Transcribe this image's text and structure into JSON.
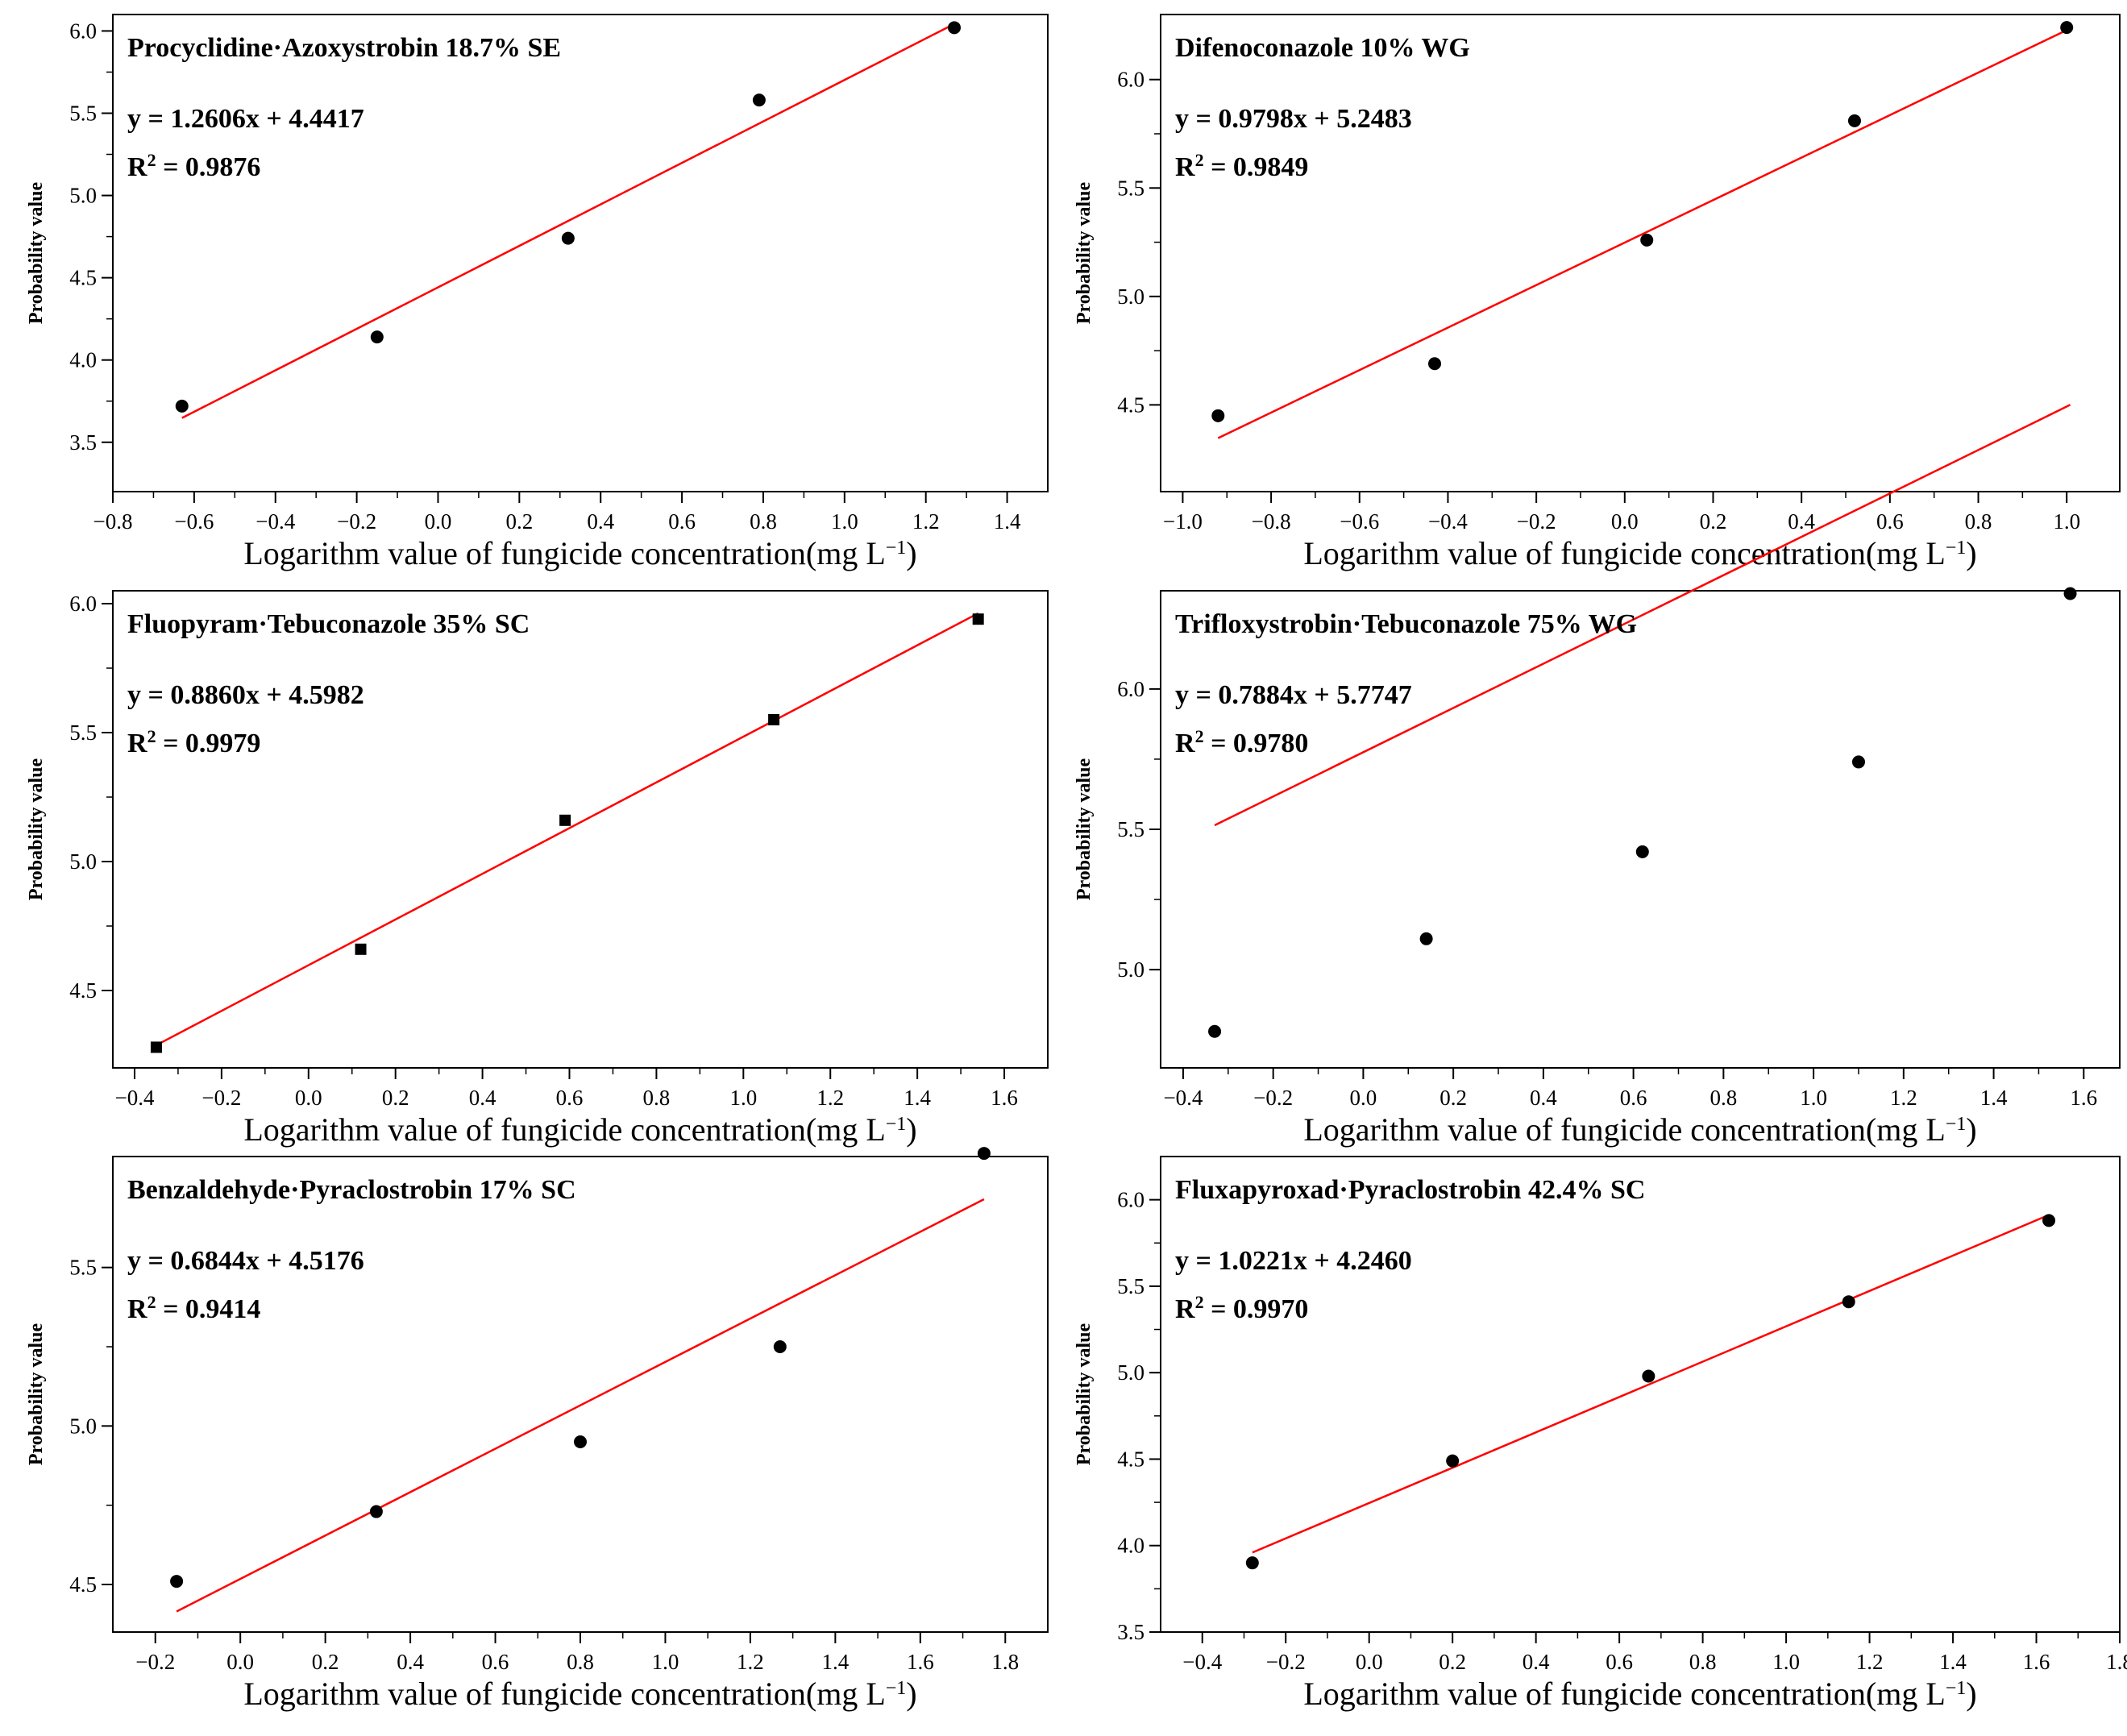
{
  "colors": {
    "fit_line": "#ff0000",
    "points": "#000000",
    "frame": "#000000"
  },
  "chart_data": [
    {
      "type": "scatter",
      "title": "Procyclidine·Azoxystrobin 18.7% SE",
      "equation": "y = 1.2606x + 4.4417",
      "r2_prefix": "R",
      "r2_sup": "2",
      "r2_value": " = 0.9876",
      "xlabel": "Logarithm value of fungicide concentration(mg L",
      "xlabel_sup": "−1",
      "xlabel_end": ")",
      "ylabel": "Probability value",
      "xlim": [
        -0.8,
        1.5
      ],
      "ylim": [
        3.2,
        6.1
      ],
      "xticks": [
        -0.8,
        -0.6,
        -0.4,
        -0.2,
        0.0,
        0.2,
        0.4,
        0.6,
        0.8,
        1.0,
        1.2,
        1.4
      ],
      "xtick_labels": [
        "−0.8",
        "−0.6",
        "−0.4",
        "−0.2",
        "0.0",
        "0.2",
        "0.4",
        "0.6",
        "0.8",
        "1.0",
        "1.2",
        "1.4"
      ],
      "yticks": [
        3.5,
        4.0,
        4.5,
        5.0,
        5.5,
        6.0
      ],
      "ytick_labels": [
        "3.5",
        "4.0",
        "4.5",
        "5.0",
        "5.5",
        "6.0"
      ],
      "x": [
        -0.63,
        -0.15,
        0.32,
        0.79,
        1.27
      ],
      "y": [
        3.72,
        4.14,
        4.74,
        5.58,
        6.02
      ],
      "marker": "circle",
      "fit": {
        "slope": 1.2606,
        "intercept": 4.4417,
        "x_range": [
          -0.63,
          1.27
        ]
      }
    },
    {
      "type": "scatter",
      "title": "Difenoconazole 10% WG",
      "equation": "y = 0.9798x + 5.2483",
      "r2_prefix": "R",
      "r2_sup": "2",
      "r2_value": " = 0.9849",
      "xlabel": "Logarithm value of fungicide concentration(mg L",
      "xlabel_sup": "−1",
      "xlabel_end": ")",
      "ylabel": "Probability value",
      "xlim": [
        -1.05,
        1.12
      ],
      "ylim": [
        4.1,
        6.3
      ],
      "xticks": [
        -1.0,
        -0.8,
        -0.6,
        -0.4,
        -0.2,
        0.0,
        0.2,
        0.4,
        0.6,
        0.8,
        1.0
      ],
      "xtick_labels": [
        "−1.0",
        "−0.8",
        "−0.6",
        "−0.4",
        "−0.2",
        "0.0",
        "0.2",
        "0.4",
        "0.6",
        "0.8",
        "1.0"
      ],
      "yticks": [
        4.5,
        5.0,
        5.5,
        6.0
      ],
      "ytick_labels": [
        "4.5",
        "5.0",
        "5.5",
        "6.0"
      ],
      "x": [
        -0.92,
        -0.43,
        0.05,
        0.52,
        1.0
      ],
      "y": [
        4.45,
        4.69,
        5.26,
        5.81,
        6.24
      ],
      "marker": "circle",
      "fit": {
        "slope": 0.9798,
        "intercept": 5.2483,
        "x_range": [
          -0.92,
          1.0
        ]
      }
    },
    {
      "type": "scatter",
      "title": "Fluopyram·Tebuconazole 35% SC",
      "equation": "y = 0.8860x + 4.5982",
      "r2_prefix": "R",
      "r2_sup": "2",
      "r2_value": " = 0.9979",
      "xlabel": "Logarithm value of fungicide concentration(mg L",
      "xlabel_sup": "−1",
      "xlabel_end": ")",
      "ylabel": "Probability value",
      "xlim": [
        -0.45,
        1.7
      ],
      "ylim": [
        4.2,
        6.05
      ],
      "xticks": [
        -0.4,
        -0.2,
        0.0,
        0.2,
        0.4,
        0.6,
        0.8,
        1.0,
        1.2,
        1.4,
        1.6
      ],
      "xtick_labels": [
        "−0.4",
        "−0.2",
        "0.0",
        "0.2",
        "0.4",
        "0.6",
        "0.8",
        "1.0",
        "1.2",
        "1.4",
        "1.6"
      ],
      "yticks": [
        4.5,
        5.0,
        5.5,
        6.0
      ],
      "ytick_labels": [
        "4.5",
        "5.0",
        "5.5",
        "6.0"
      ],
      "x": [
        -0.35,
        0.12,
        0.59,
        1.07,
        1.54
      ],
      "y": [
        4.28,
        4.66,
        5.16,
        5.55,
        5.94
      ],
      "marker": "square",
      "fit": {
        "slope": 0.886,
        "intercept": 4.5982,
        "x_range": [
          -0.35,
          1.54
        ]
      }
    },
    {
      "type": "scatter",
      "title": "Trifloxystrobin·Tebuconazole 75% WG",
      "equation": "y = 0.7884x + 5.7747",
      "r2_prefix": "R",
      "r2_sup": "2",
      "r2_value": " = 0.9780",
      "xlabel": "Logarithm value of fungicide concentration(mg L",
      "xlabel_sup": "−1",
      "xlabel_end": ")",
      "ylabel": "Probability value",
      "xlim": [
        -0.45,
        1.68
      ],
      "ylim": [
        4.65,
        6.35
      ],
      "xticks": [
        -0.4,
        -0.2,
        0.0,
        0.2,
        0.4,
        0.6,
        0.8,
        1.0,
        1.2,
        1.4,
        1.6
      ],
      "xtick_labels": [
        "−0.4",
        "−0.2",
        "0.0",
        "0.2",
        "0.4",
        "0.6",
        "0.8",
        "1.0",
        "1.2",
        "1.4",
        "1.6"
      ],
      "yticks": [
        5.0,
        5.5,
        6.0
      ],
      "ytick_labels": [
        "5.0",
        "5.5",
        "6.0"
      ],
      "x": [
        -0.33,
        0.14,
        0.62,
        1.1,
        1.57
      ],
      "y": [
        4.78,
        5.11,
        5.42,
        5.74,
        6.34
      ],
      "marker": "circle",
      "fit": {
        "slope": 0.7884,
        "intercept": 5.7747,
        "x_range": [
          -0.33,
          1.57
        ]
      }
    },
    {
      "type": "scatter",
      "title": "Benzaldehyde·Pyraclostrobin 17% SC",
      "equation": "y = 0.6844x + 4.5176",
      "r2_prefix": "R",
      "r2_sup": "2",
      "r2_value": " = 0.9414",
      "xlabel": "Logarithm value of fungicide concentration(mg L",
      "xlabel_sup": "−1",
      "xlabel_end": ")",
      "ylabel": "Probability value",
      "xlim": [
        -0.3,
        1.9
      ],
      "ylim": [
        4.35,
        5.85
      ],
      "xticks": [
        -0.2,
        0.0,
        0.2,
        0.4,
        0.6,
        0.8,
        1.0,
        1.2,
        1.4,
        1.6,
        1.8
      ],
      "xtick_labels": [
        "−0.2",
        "0.0",
        "0.2",
        "0.4",
        "0.6",
        "0.8",
        "1.0",
        "1.2",
        "1.4",
        "1.6",
        "1.8"
      ],
      "yticks": [
        4.5,
        5.0,
        5.5
      ],
      "ytick_labels": [
        "4.5",
        "5.0",
        "5.5"
      ],
      "x": [
        -0.15,
        0.32,
        0.8,
        1.27,
        1.75
      ],
      "y": [
        4.51,
        4.73,
        4.95,
        5.25,
        5.86
      ],
      "marker": "circle",
      "fit": {
        "slope": 0.6844,
        "intercept": 4.5176,
        "x_range": [
          -0.15,
          1.75
        ]
      }
    },
    {
      "type": "scatter",
      "title": "Fluxapyroxad·Pyraclostrobin 42.4% SC",
      "equation": "y = 1.0221x + 4.2460",
      "r2_prefix": "R",
      "r2_sup": "2",
      "r2_value": " = 0.9970",
      "xlabel": "Logarithm value of fungicide concentration(mg L",
      "xlabel_sup": "−1",
      "xlabel_end": ")",
      "ylabel": "Probability value",
      "xlim": [
        -0.5,
        1.8
      ],
      "ylim": [
        3.5,
        6.25
      ],
      "xticks": [
        -0.4,
        -0.2,
        0.0,
        0.2,
        0.4,
        0.6,
        0.8,
        1.0,
        1.2,
        1.4,
        1.6,
        1.8
      ],
      "xtick_labels": [
        "−0.4",
        "−0.2",
        "0.0",
        "0.2",
        "0.4",
        "0.6",
        "0.8",
        "1.0",
        "1.2",
        "1.4",
        "1.6",
        "1.8"
      ],
      "yticks": [
        3.5,
        4.0,
        4.5,
        5.0,
        5.5,
        6.0
      ],
      "ytick_labels": [
        "3.5",
        "4.0",
        "4.5",
        "5.0",
        "5.5",
        "6.0"
      ],
      "x": [
        -0.28,
        0.2,
        0.67,
        1.15,
        1.63
      ],
      "y": [
        3.9,
        4.49,
        4.98,
        5.41,
        5.88
      ],
      "marker": "circle",
      "fit": {
        "slope": 1.0221,
        "intercept": 4.246,
        "x_range": [
          -0.28,
          1.63
        ]
      }
    }
  ]
}
